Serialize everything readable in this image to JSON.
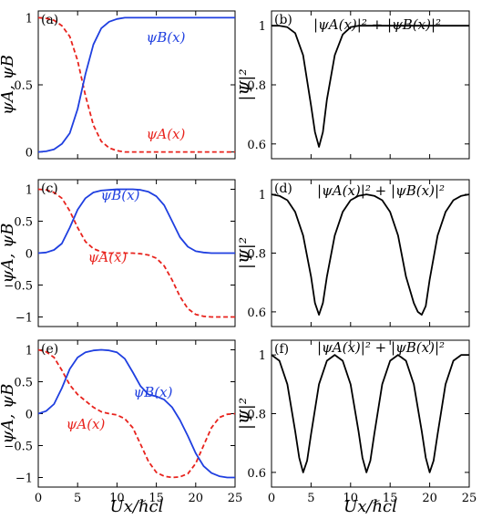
{
  "chart_data": [
    {
      "panel": "a",
      "type": "line",
      "panel_label": "(a)",
      "xlim": [
        0,
        25
      ],
      "ylim": [
        -0.05,
        1.05
      ],
      "xticks": [],
      "yticks": [
        0,
        0.5,
        1
      ],
      "ytick_labels": [
        "0",
        "0.5",
        "1"
      ],
      "ylabel": "ψA, ψB",
      "series": [
        {
          "name": "ψA(x)",
          "color": "#e8231d",
          "dash": true,
          "x": [
            0,
            1,
            2,
            3,
            4,
            5,
            6,
            7,
            8,
            9,
            10,
            11,
            12,
            13,
            14,
            15,
            16,
            17,
            18,
            19,
            20,
            21,
            22,
            23,
            24,
            25
          ],
          "y": [
            1.0,
            0.995,
            0.98,
            0.94,
            0.86,
            0.68,
            0.42,
            0.2,
            0.08,
            0.03,
            0.01,
            0.0,
            0,
            0,
            0,
            0,
            0,
            0,
            0,
            0,
            0,
            0,
            0,
            0,
            0,
            0
          ]
        },
        {
          "name": "ψB(x)",
          "color": "#1f3fe0",
          "dash": false,
          "x": [
            0,
            1,
            2,
            3,
            4,
            5,
            6,
            7,
            8,
            9,
            10,
            11,
            12,
            13,
            14,
            15,
            16,
            17,
            18,
            19,
            20,
            21,
            22,
            23,
            24,
            25
          ],
          "y": [
            0.0,
            0.005,
            0.02,
            0.06,
            0.14,
            0.32,
            0.58,
            0.8,
            0.92,
            0.97,
            0.99,
            1.0,
            1,
            1,
            1,
            1,
            1,
            1,
            1,
            1,
            1,
            1,
            1,
            1,
            1,
            1
          ]
        }
      ],
      "annotations": [
        {
          "text": "ψB(x)",
          "color": "#1f3fe0"
        },
        {
          "text": "ψA(x)",
          "color": "#e8231d"
        }
      ]
    },
    {
      "panel": "b",
      "type": "line",
      "panel_label": "(b)",
      "title": "|ψA(x)|² + |ψB(x)|²",
      "xlim": [
        0,
        25
      ],
      "ylim": [
        0.55,
        1.05
      ],
      "xticks": [],
      "yticks": [
        0.6,
        0.8,
        1
      ],
      "ytick_labels": [
        "0.6",
        "0.8",
        "1"
      ],
      "ylabel": "|Ψ|²",
      "series": [
        {
          "name": "",
          "color": "#000000",
          "dash": false,
          "x": [
            0,
            1,
            2,
            3,
            4,
            5,
            5.5,
            6,
            6.5,
            7,
            8,
            9,
            10,
            11,
            12,
            13,
            14,
            15,
            16,
            17,
            18,
            19,
            20,
            21,
            22,
            23,
            24,
            25
          ],
          "y": [
            1.0,
            1.0,
            0.995,
            0.975,
            0.9,
            0.73,
            0.64,
            0.59,
            0.64,
            0.75,
            0.9,
            0.97,
            0.995,
            1.0,
            1,
            1,
            1,
            1,
            1,
            1,
            1,
            1,
            1,
            1,
            1,
            1,
            1,
            1
          ]
        }
      ]
    },
    {
      "panel": "c",
      "type": "line",
      "panel_label": "(c)",
      "xlim": [
        0,
        25
      ],
      "ylim": [
        -1.15,
        1.15
      ],
      "xticks": [],
      "yticks": [
        -1,
        -0.5,
        0,
        0.5,
        1
      ],
      "ytick_labels": [
        "−1",
        "−0.5",
        "0",
        "0.5",
        "1"
      ],
      "ylabel": "ψA, ψB",
      "series": [
        {
          "name": "ψA(x)",
          "color": "#e8231d",
          "dash": true,
          "x": [
            0,
            1,
            2,
            3,
            4,
            5,
            6,
            7,
            8,
            9,
            10,
            11,
            12,
            13,
            14,
            15,
            16,
            17,
            18,
            19,
            20,
            21,
            22,
            23,
            24,
            25
          ],
          "y": [
            1.0,
            0.99,
            0.95,
            0.86,
            0.66,
            0.4,
            0.18,
            0.07,
            0.02,
            0.0,
            0.0,
            0.0,
            0.0,
            -0.01,
            -0.03,
            -0.08,
            -0.2,
            -0.42,
            -0.68,
            -0.87,
            -0.96,
            -0.99,
            -1.0,
            -1.0,
            -1.0,
            -1.0
          ]
        },
        {
          "name": "ψB(x)",
          "color": "#1f3fe0",
          "dash": false,
          "x": [
            0,
            1,
            2,
            3,
            4,
            5,
            6,
            7,
            8,
            9,
            10,
            11,
            12,
            13,
            14,
            15,
            16,
            17,
            18,
            19,
            20,
            21,
            22,
            23,
            24,
            25
          ],
          "y": [
            0.0,
            0.01,
            0.05,
            0.15,
            0.4,
            0.68,
            0.86,
            0.95,
            0.98,
            0.99,
            1.0,
            1.0,
            1.0,
            0.99,
            0.96,
            0.89,
            0.75,
            0.5,
            0.25,
            0.1,
            0.03,
            0.01,
            0.0,
            0.0,
            0.0,
            0.0
          ]
        }
      ],
      "annotations": [
        {
          "text": "ψB(x)",
          "color": "#1f3fe0"
        },
        {
          "text": "ψA(x)",
          "color": "#e8231d"
        }
      ]
    },
    {
      "panel": "d",
      "type": "line",
      "panel_label": "(d)",
      "title": "|ψA(x)|² + |ψB(x)|²",
      "xlim": [
        0,
        25
      ],
      "ylim": [
        0.55,
        1.05
      ],
      "xticks": [],
      "yticks": [
        0.6,
        0.8,
        1
      ],
      "ytick_labels": [
        "0.6",
        "0.8",
        "1"
      ],
      "ylabel": "|Ψ|²",
      "series": [
        {
          "name": "",
          "color": "#000000",
          "dash": false,
          "x": [
            0,
            1,
            2,
            3,
            4,
            5,
            5.5,
            6,
            6.5,
            7,
            8,
            9,
            10,
            11,
            12,
            13,
            14,
            15,
            16,
            17,
            18,
            18.5,
            19,
            19.5,
            20,
            21,
            22,
            23,
            24,
            25
          ],
          "y": [
            1.0,
            0.995,
            0.98,
            0.94,
            0.86,
            0.72,
            0.63,
            0.59,
            0.63,
            0.72,
            0.86,
            0.94,
            0.98,
            0.995,
            1.0,
            0.995,
            0.98,
            0.94,
            0.86,
            0.72,
            0.63,
            0.6,
            0.59,
            0.62,
            0.71,
            0.86,
            0.94,
            0.98,
            0.995,
            1.0
          ]
        }
      ]
    },
    {
      "panel": "e",
      "type": "line",
      "panel_label": "(e)",
      "xlim": [
        0,
        25
      ],
      "ylim": [
        -1.15,
        1.15
      ],
      "xticks": [
        0,
        5,
        10,
        15,
        20,
        25
      ],
      "xtick_labels": [
        "0",
        "5",
        "10",
        "15",
        "20",
        "25"
      ],
      "yticks": [
        -1,
        -0.5,
        0,
        0.5,
        1
      ],
      "ytick_labels": [
        "−1",
        "−0.5",
        "0",
        "0.5",
        "1"
      ],
      "xlabel": "Ux/ℏcl",
      "ylabel": "ψA, ψB",
      "series": [
        {
          "name": "ψA(x)",
          "color": "#e8231d",
          "dash": true,
          "x": [
            0,
            1,
            2,
            3,
            4,
            5,
            6,
            7,
            8,
            9,
            10,
            11,
            12,
            13,
            14,
            15,
            16,
            17,
            18,
            19,
            20,
            21,
            22,
            23,
            24,
            25
          ],
          "y": [
            1.0,
            0.97,
            0.88,
            0.68,
            0.45,
            0.3,
            0.2,
            0.1,
            0.03,
            0.0,
            -0.02,
            -0.08,
            -0.22,
            -0.48,
            -0.75,
            -0.92,
            -0.98,
            -1.0,
            -0.99,
            -0.94,
            -0.78,
            -0.5,
            -0.22,
            -0.06,
            -0.01,
            0.0
          ]
        },
        {
          "name": "ψB(x)",
          "color": "#1f3fe0",
          "dash": false,
          "x": [
            0,
            1,
            2,
            3,
            4,
            5,
            6,
            7,
            8,
            9,
            10,
            11,
            12,
            13,
            14,
            15,
            16,
            17,
            18,
            19,
            20,
            21,
            22,
            23,
            24,
            25
          ],
          "y": [
            0.0,
            0.04,
            0.15,
            0.4,
            0.7,
            0.88,
            0.96,
            0.99,
            1.0,
            0.99,
            0.96,
            0.86,
            0.65,
            0.43,
            0.3,
            0.27,
            0.22,
            0.1,
            -0.1,
            -0.35,
            -0.62,
            -0.82,
            -0.93,
            -0.98,
            -1.0,
            -1.0
          ]
        }
      ],
      "annotations": [
        {
          "text": "ψB(x)",
          "color": "#1f3fe0"
        },
        {
          "text": "ψA(x)",
          "color": "#e8231d"
        }
      ]
    },
    {
      "panel": "f",
      "type": "line",
      "panel_label": "(f)",
      "title": "|ψA(x)|² + |ψB(x)|²",
      "xlim": [
        0,
        25
      ],
      "ylim": [
        0.55,
        1.05
      ],
      "xticks": [
        0,
        5,
        10,
        15,
        20,
        25
      ],
      "xtick_labels": [
        "0",
        "5",
        "10",
        "15",
        "20",
        "25"
      ],
      "yticks": [
        0.6,
        0.8,
        1
      ],
      "ytick_labels": [
        "0.6",
        "0.8",
        "1"
      ],
      "xlabel": "Ux/ℏcl",
      "ylabel": "|Ψ|²",
      "series": [
        {
          "name": "",
          "color": "#000000",
          "dash": false,
          "x": [
            0,
            1,
            2,
            3,
            3.5,
            4,
            4.5,
            5,
            6,
            7,
            8,
            9,
            10,
            11,
            11.5,
            12,
            12.5,
            13,
            14,
            15,
            16,
            17,
            18,
            19,
            19.5,
            20,
            20.5,
            21,
            22,
            23,
            24,
            25
          ],
          "y": [
            1.0,
            0.98,
            0.9,
            0.74,
            0.65,
            0.6,
            0.64,
            0.73,
            0.9,
            0.98,
            1.0,
            0.98,
            0.9,
            0.74,
            0.65,
            0.6,
            0.64,
            0.73,
            0.9,
            0.98,
            1.0,
            0.98,
            0.9,
            0.74,
            0.65,
            0.6,
            0.64,
            0.73,
            0.9,
            0.98,
            1.0,
            1.0
          ]
        }
      ]
    }
  ]
}
